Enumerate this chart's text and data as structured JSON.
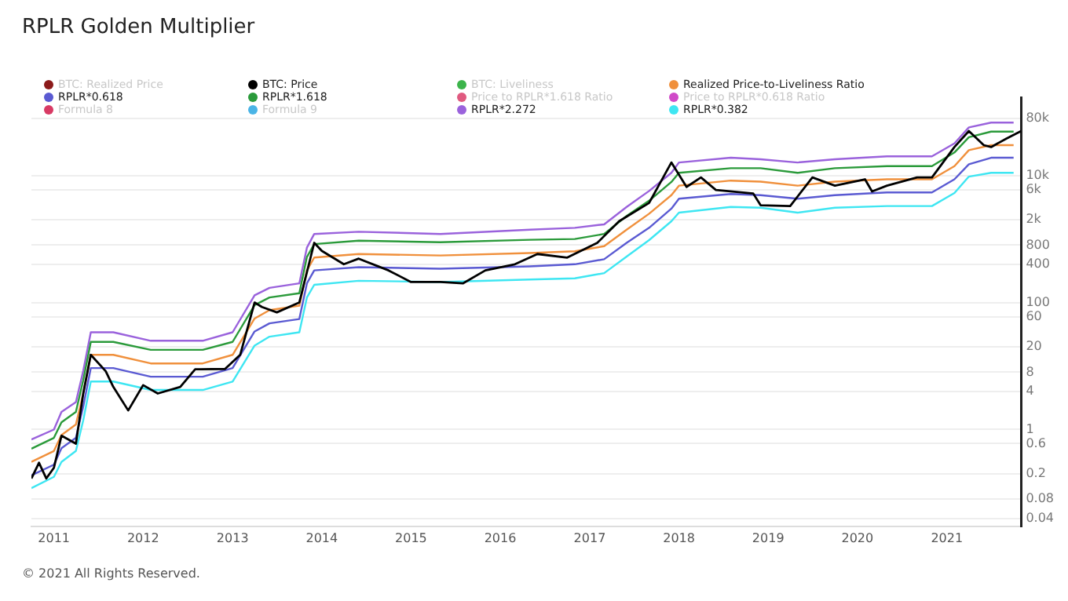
{
  "chart_data": {
    "type": "line",
    "title": "RPLR Golden Multiplier",
    "annotations": [
      "© 2021 All Rights Reserved."
    ],
    "log": "y",
    "grid": "y",
    "legend": "top",
    "tick_labels": "xy",
    "marker": "none",
    "line_style": "solid",
    "xlim": [
      "2010-10",
      "2021-11"
    ],
    "xticks": [
      "2011",
      "2012",
      "2013",
      "2014",
      "2015",
      "2016",
      "2017",
      "2018",
      "2019",
      "2020",
      "2021"
    ],
    "ylim": [
      0.03,
      170000
    ],
    "yticks": [
      {
        "value": 80000,
        "label": "80k"
      },
      {
        "value": 10000,
        "label": "10k"
      },
      {
        "value": 6000,
        "label": "6k"
      },
      {
        "value": 2000,
        "label": "2k"
      },
      800,
      400,
      100,
      60,
      20,
      8,
      4,
      1,
      0.6,
      0.2,
      0.08,
      0.04
    ],
    "series": [
      {
        "name": "BTC: Realized Price",
        "color": "#8b1a1a",
        "values": [
          null,
          null,
          null,
          null,
          null,
          null,
          null,
          null,
          null,
          null,
          null,
          null,
          null,
          null,
          null,
          null,
          null,
          null,
          null,
          null,
          null,
          null,
          null,
          null,
          null,
          null,
          null,
          null,
          null,
          null,
          null,
          null,
          null,
          null
        ]
      },
      {
        "name": "BTC: Price",
        "color": "#000000",
        "x": [
          "2010-10",
          "2010-11",
          "2010-12",
          "2011-01",
          "2011-02",
          "2011-04",
          "2011-05",
          "2011-06",
          "2011-08",
          "2011-09",
          "2011-11",
          "2012-01",
          "2012-03",
          "2012-06",
          "2012-08",
          "2012-12",
          "2013-02",
          "2013-04",
          "2013-05",
          "2013-07",
          "2013-10",
          "2013-12",
          "2014-01",
          "2014-04",
          "2014-06",
          "2014-10",
          "2015-01",
          "2015-05",
          "2015-08",
          "2015-11",
          "2016-03",
          "2016-06",
          "2016-10",
          "2017-02",
          "2017-05",
          "2017-09",
          "2017-12",
          "2018-02",
          "2018-04",
          "2018-06",
          "2018-11",
          "2018-12",
          "2019-04",
          "2019-07",
          "2019-10",
          "2020-02",
          "2020-03",
          "2020-05",
          "2020-09",
          "2020-11",
          "2021-02",
          "2021-04",
          "2021-06",
          "2021-07",
          "2021-09",
          "2021-11"
        ],
        "values": [
          0.17,
          0.3,
          0.17,
          0.25,
          0.8,
          0.6,
          3.7,
          15,
          8.3,
          4.7,
          2,
          5,
          3.7,
          4.7,
          8.9,
          9,
          15,
          100,
          85,
          70,
          100,
          870,
          650,
          400,
          490,
          320,
          210,
          210,
          200,
          320,
          400,
          580,
          510,
          870,
          1900,
          3700,
          16000,
          6600,
          9300,
          5900,
          5200,
          3400,
          3300,
          9300,
          6900,
          8700,
          5600,
          6900,
          9300,
          9300,
          28000,
          50000,
          30000,
          28000,
          38000,
          50000
        ]
      },
      {
        "name": "BTC: Liveliness",
        "color": "#3cb44b",
        "values": [
          null,
          null,
          null,
          null,
          null,
          null,
          null,
          null,
          null,
          null,
          null,
          null,
          null,
          null,
          null,
          null,
          null,
          null,
          null,
          null,
          null,
          null,
          null,
          null,
          null,
          null,
          null,
          null,
          null,
          null,
          null,
          null,
          null,
          null
        ]
      },
      {
        "name": "Realized Price-to-Liveliness Ratio",
        "color": "#f0903c",
        "values": [
          0.31,
          0.46,
          0.82,
          1.2,
          3.7,
          15,
          15,
          11,
          11,
          15,
          56,
          76,
          89,
          320,
          510,
          580,
          550,
          600,
          640,
          770,
          1400,
          2500,
          4900,
          6900,
          8300,
          8000,
          6900,
          8000,
          8700,
          8700,
          14000,
          25000,
          30000,
          30000
        ]
      },
      {
        "name": "RPLR*0.618",
        "color": "#5a5ad2",
        "values": [
          0.19,
          0.28,
          0.51,
          0.74,
          2.3,
          9.3,
          9.3,
          6.8,
          6.8,
          9.3,
          35,
          47,
          55,
          200,
          320,
          360,
          340,
          370,
          400,
          480,
          870,
          1500,
          3000,
          4300,
          5100,
          4900,
          4300,
          4900,
          5400,
          5400,
          8700,
          15000,
          19000,
          19000
        ]
      },
      {
        "name": "RPLR*1.618",
        "color": "#2a9a3a",
        "values": [
          0.5,
          0.74,
          1.3,
          1.9,
          6,
          24,
          24,
          18,
          18,
          24,
          91,
          120,
          140,
          520,
          830,
          940,
          890,
          970,
          1000,
          1200,
          2300,
          4000,
          7900,
          11000,
          13000,
          13000,
          11000,
          13000,
          14000,
          14000,
          23000,
          40000,
          49000,
          49000
        ]
      },
      {
        "name": "Price to RPLR*1.618 Ratio",
        "color": "#e05a80",
        "values": [
          null,
          null,
          null,
          null,
          null,
          null,
          null,
          null,
          null,
          null,
          null,
          null,
          null,
          null,
          null,
          null,
          null,
          null,
          null,
          null,
          null,
          null,
          null,
          null,
          null,
          null,
          null,
          null,
          null,
          null,
          null,
          null,
          null,
          null
        ]
      },
      {
        "name": "Price to RPLR*0.618 Ratio",
        "color": "#d04ac8",
        "values": [
          null,
          null,
          null,
          null,
          null,
          null,
          null,
          null,
          null,
          null,
          null,
          null,
          null,
          null,
          null,
          null,
          null,
          null,
          null,
          null,
          null,
          null,
          null,
          null,
          null,
          null,
          null,
          null,
          null,
          null,
          null,
          null,
          null,
          null
        ]
      },
      {
        "name": "Formula 8",
        "color": "#d83a64",
        "values": [
          null,
          null,
          null,
          null,
          null,
          null,
          null,
          null,
          null,
          null,
          null,
          null,
          null,
          null,
          null,
          null,
          null,
          null,
          null,
          null,
          null,
          null,
          null,
          null,
          null,
          null,
          null,
          null,
          null,
          null,
          null,
          null,
          null,
          null
        ]
      },
      {
        "name": "Formula 9",
        "color": "#4ab4e6",
        "values": [
          null,
          null,
          null,
          null,
          null,
          null,
          null,
          null,
          null,
          null,
          null,
          null,
          null,
          null,
          null,
          null,
          null,
          null,
          null,
          null,
          null,
          null,
          null,
          null,
          null,
          null,
          null,
          null,
          null,
          null,
          null,
          null,
          null,
          null
        ]
      },
      {
        "name": "RPLR*2.272",
        "color": "#9a62dc",
        "values": [
          0.7,
          1.0,
          1.9,
          2.7,
          8.4,
          34,
          34,
          25,
          25,
          34,
          130,
          170,
          200,
          730,
          1200,
          1300,
          1200,
          1400,
          1500,
          1700,
          3200,
          5700,
          11000,
          16000,
          19000,
          18000,
          16000,
          18000,
          20000,
          20000,
          32000,
          57000,
          68000,
          68000
        ]
      },
      {
        "name": "RPLR*0.382",
        "color": "#3ee6f2",
        "values": [
          0.12,
          0.18,
          0.31,
          0.46,
          1.4,
          5.7,
          5.7,
          4.2,
          4.2,
          5.7,
          21,
          29,
          34,
          120,
          190,
          220,
          210,
          230,
          240,
          290,
          530,
          960,
          1900,
          2600,
          3200,
          3100,
          2600,
          3100,
          3300,
          3300,
          5300,
          9600,
          11000,
          11000
        ]
      }
    ],
    "x": [
      "2010-10",
      "2011-01",
      "2011-02",
      "2011-04",
      "2011-05",
      "2011-06",
      "2011-09",
      "2012-02",
      "2012-09",
      "2013-01",
      "2013-04",
      "2013-06",
      "2013-10",
      "2013-11",
      "2013-12",
      "2014-06",
      "2015-05",
      "2016-05",
      "2016-11",
      "2017-03",
      "2017-06",
      "2017-09",
      "2017-12",
      "2018-01",
      "2018-08",
      "2018-12",
      "2019-05",
      "2019-10",
      "2020-05",
      "2020-11",
      "2021-02",
      "2021-04",
      "2021-07",
      "2021-10"
    ]
  }
}
